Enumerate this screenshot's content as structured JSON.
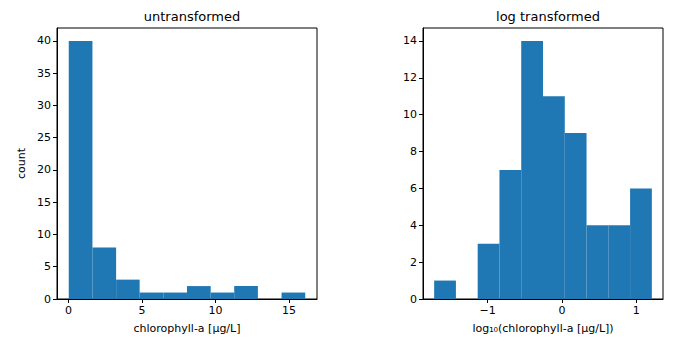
{
  "chart_data": [
    {
      "type": "histogram",
      "title": "untransformed",
      "xlabel": "chlorophyll-a [μg/L]",
      "ylabel": "count",
      "bins": [
        0.02,
        1.63,
        3.24,
        4.84,
        6.45,
        8.06,
        9.67,
        11.27,
        12.88,
        14.49,
        16.1
      ],
      "counts": [
        40,
        8,
        3,
        1,
        1,
        2,
        1,
        2,
        0,
        1
      ],
      "color": "#1f77b4",
      "xlim": [
        -0.78,
        16.9
      ],
      "xticks": [
        0,
        5,
        10,
        15
      ],
      "ylim": [
        0,
        42
      ],
      "yticks": [
        0,
        5,
        10,
        15,
        20,
        25,
        30,
        35,
        40
      ],
      "grid": false
    },
    {
      "type": "histogram",
      "title": "log transformed",
      "xlabel": "log₁₀(chlorophyll-a [μg/L])",
      "bins": [
        -1.72,
        -1.427,
        -1.134,
        -0.841,
        -0.548,
        -0.255,
        0.038,
        0.331,
        0.624,
        0.917,
        1.21
      ],
      "counts": [
        1,
        0,
        3,
        7,
        14,
        11,
        9,
        4,
        4,
        6
      ],
      "color": "#1f77b4",
      "xlim": [
        -1.87,
        1.36
      ],
      "xticks": [
        {
          "value": -1,
          "label": "−1"
        },
        0,
        1
      ],
      "ylim": [
        0,
        14.7
      ],
      "yticks": [
        0,
        2,
        4,
        6,
        8,
        10,
        12,
        14
      ],
      "grid": false
    }
  ]
}
